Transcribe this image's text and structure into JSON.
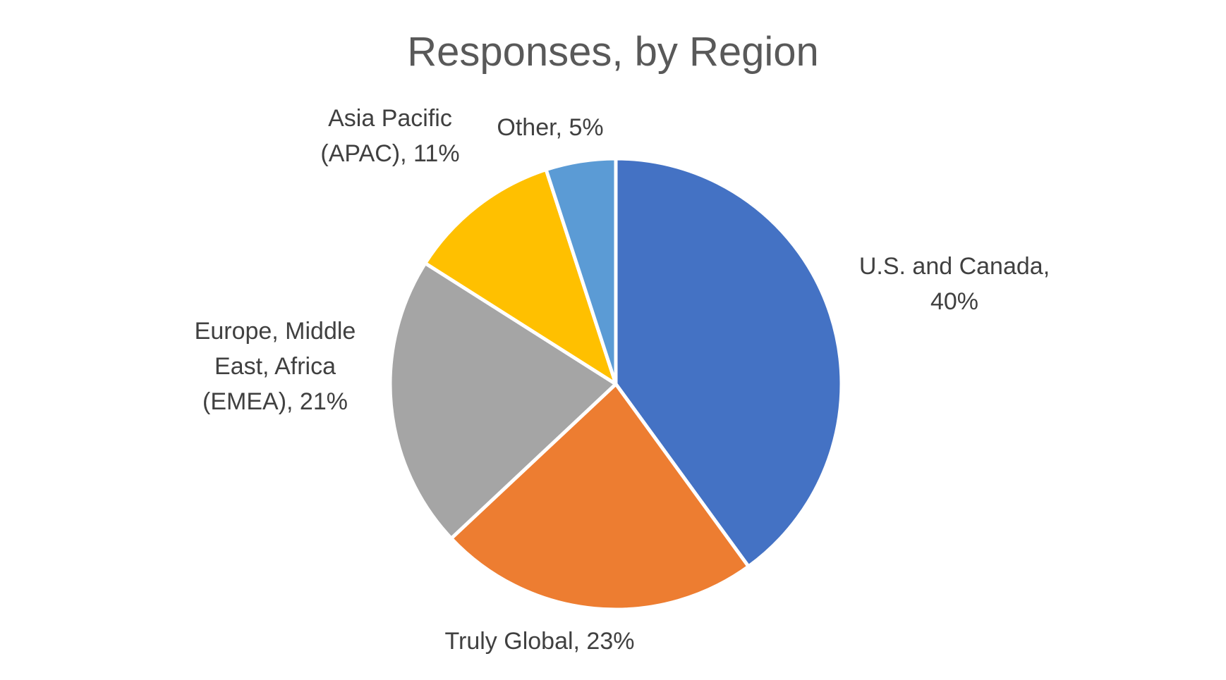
{
  "chart_data": {
    "type": "pie",
    "title": "Responses, by Region",
    "slices": [
      {
        "label_lines": [
          "U.S. and Canada,",
          "40%"
        ],
        "category": "U.S. and Canada",
        "value": 40,
        "color": "#4472C4"
      },
      {
        "label_lines": [
          "Truly Global, 23%"
        ],
        "category": "Truly Global",
        "value": 23,
        "color": "#ED7D31"
      },
      {
        "label_lines": [
          "Europe, Middle",
          "East, Africa",
          "(EMEA), 21%"
        ],
        "category": "Europe, Middle East, Africa (EMEA)",
        "value": 21,
        "color": "#A5A5A5"
      },
      {
        "label_lines": [
          "Asia Pacific",
          "(APAC), 11%"
        ],
        "category": "Asia Pacific (APAC)",
        "value": 11,
        "color": "#FFC000"
      },
      {
        "label_lines": [
          "Other, 5%"
        ],
        "category": "Other",
        "value": 5,
        "color": "#5B9BD5"
      }
    ]
  }
}
